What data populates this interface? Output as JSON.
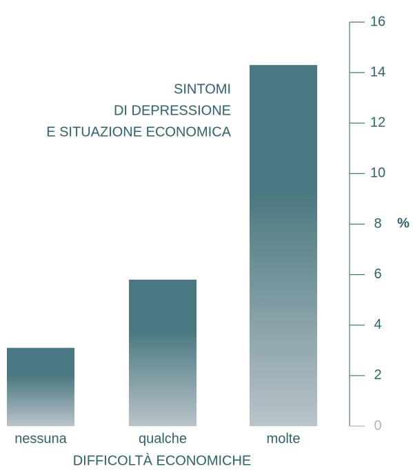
{
  "chart_data": {
    "type": "bar",
    "title": [
      "SINTOMI",
      "DI DEPRESSIONE",
      "E SITUAZIONE ECONOMICA"
    ],
    "categories": [
      "nessuna",
      "qualche",
      "molte"
    ],
    "values": [
      3.1,
      5.8,
      14.3
    ],
    "color": "#4a7880",
    "x_label": "DIFFICOLTÀ ECONOMICHE",
    "y_label": "%",
    "ylim": [
      0,
      16
    ],
    "yticks": [
      0,
      2,
      4,
      6,
      8,
      10,
      12,
      14,
      16
    ]
  }
}
